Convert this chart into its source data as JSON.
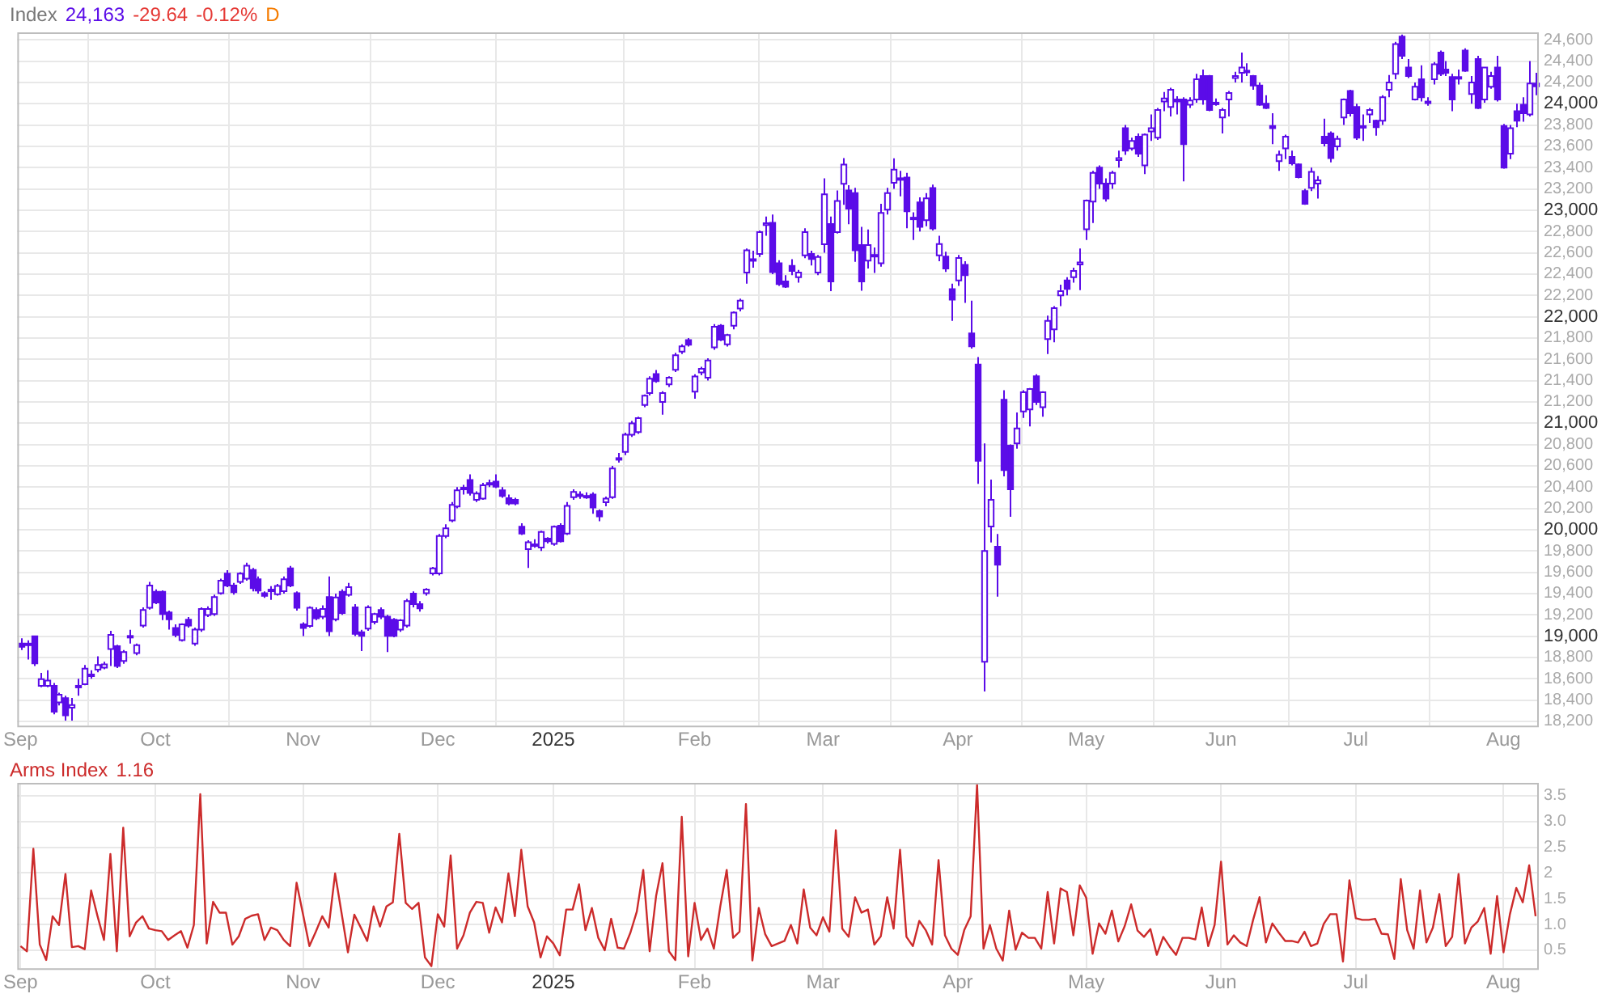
{
  "chart_data": [
    {
      "type": "candlestick",
      "title": "Index",
      "annotations": [
        "24,163",
        "-29.64",
        "-0.12%",
        "D"
      ],
      "color": "#5b0ce8",
      "grid": true,
      "categories": [
        "Sep",
        null,
        null,
        null,
        null,
        null,
        null,
        null,
        null,
        null,
        null,
        null,
        null,
        null,
        null,
        null,
        null,
        null,
        null,
        null,
        null,
        "Oct",
        null,
        null,
        null,
        null,
        null,
        null,
        null,
        null,
        null,
        null,
        null,
        null,
        null,
        null,
        null,
        null,
        null,
        null,
        null,
        null,
        null,
        null,
        "Nov",
        null,
        null,
        null,
        null,
        null,
        null,
        null,
        null,
        null,
        null,
        null,
        null,
        null,
        null,
        null,
        null,
        null,
        null,
        null,
        null,
        "Dec",
        null,
        null,
        null,
        null,
        null,
        null,
        null,
        null,
        null,
        null,
        null,
        null,
        null,
        null,
        null,
        null,
        null,
        "2025",
        null,
        null,
        null,
        null,
        null,
        null,
        null,
        null,
        null,
        null,
        null,
        null,
        null,
        null,
        null,
        null,
        null,
        null,
        null,
        null,
        null,
        "Feb",
        null,
        null,
        null,
        null,
        null,
        null,
        null,
        null,
        null,
        null,
        null,
        null,
        null,
        null,
        null,
        null,
        null,
        null,
        null,
        "Mar",
        null,
        null,
        null,
        null,
        null,
        null,
        null,
        null,
        null,
        null,
        null,
        null,
        null,
        null,
        null,
        null,
        null,
        null,
        null,
        null,
        "Apr",
        null,
        null,
        null,
        null,
        null,
        null,
        null,
        null,
        null,
        null,
        null,
        null,
        null,
        null,
        null,
        null,
        null,
        null,
        null,
        "May",
        null,
        null,
        null,
        null,
        null,
        null,
        null,
        null,
        null,
        null,
        null,
        null,
        null,
        null,
        null,
        null,
        null,
        null,
        null,
        null,
        "Jun",
        null,
        null,
        null,
        null,
        null,
        null,
        null,
        null,
        null,
        null,
        null,
        null,
        null,
        null,
        null,
        null,
        null,
        null,
        null,
        null,
        "Jul",
        null,
        null,
        null,
        null,
        null,
        null,
        null,
        null,
        null,
        null,
        null,
        null,
        null,
        null,
        null,
        null,
        null,
        null,
        null,
        null,
        null,
        null,
        "Aug",
        null,
        null,
        null,
        null,
        null
      ],
      "ylim": [
        18160,
        24670
      ],
      "yticks": [
        {
          "value": 18200,
          "label": "18,200"
        },
        {
          "value": 18400,
          "label": "18,400"
        },
        {
          "value": 18600,
          "label": "18,600"
        },
        {
          "value": 18800,
          "label": "18,800"
        },
        {
          "value": 19000,
          "label": "19,000"
        },
        {
          "value": 19200,
          "label": "19,200"
        },
        {
          "value": 19400,
          "label": "19,400"
        },
        {
          "value": 19600,
          "label": "19,600"
        },
        {
          "value": 19800,
          "label": "19,800"
        },
        {
          "value": 20000,
          "label": "20,000"
        },
        {
          "value": 20200,
          "label": "20,200"
        },
        {
          "value": 20400,
          "label": "20,400"
        },
        {
          "value": 20600,
          "label": "20,600"
        },
        {
          "value": 20800,
          "label": "20,800"
        },
        {
          "value": 21000,
          "label": "21,000"
        },
        {
          "value": 21200,
          "label": "21,200"
        },
        {
          "value": 21400,
          "label": "21,400"
        },
        {
          "value": 21600,
          "label": "21,600"
        },
        {
          "value": 21800,
          "label": "21,800"
        },
        {
          "value": 22000,
          "label": "22,000"
        },
        {
          "value": 22200,
          "label": "22,200"
        },
        {
          "value": 22400,
          "label": "22,400"
        },
        {
          "value": 22600,
          "label": "22,600"
        },
        {
          "value": 22800,
          "label": "22,800"
        },
        {
          "value": 23000,
          "label": "23,000"
        },
        {
          "value": 23200,
          "label": "23,200"
        },
        {
          "value": 23400,
          "label": "23,400"
        },
        {
          "value": 23600,
          "label": "23,600"
        },
        {
          "value": 23800,
          "label": "23,800"
        },
        {
          "value": 24000,
          "label": "24,000"
        },
        {
          "value": 24200,
          "label": "24,200"
        },
        {
          "value": 24400,
          "label": "24,400"
        },
        {
          "value": 24600,
          "label": "24,600"
        }
      ],
      "ohlc": [
        [
          18930,
          18980,
          18870,
          18900
        ],
        [
          18930,
          18960,
          18780,
          18925
        ],
        [
          18998,
          19000,
          18720,
          18744
        ],
        [
          18534,
          18656,
          18520,
          18597
        ],
        [
          18534,
          18680,
          18520,
          18583
        ],
        [
          18534,
          18560,
          18266,
          18290
        ],
        [
          18378,
          18470,
          18350,
          18451
        ],
        [
          18417,
          18440,
          18207,
          18256
        ],
        [
          18329,
          18420,
          18207,
          18354
        ],
        [
          18530,
          18600,
          18440,
          18534
        ],
        [
          18549,
          18730,
          18540,
          18695
        ],
        [
          18640,
          18680,
          18600,
          18632
        ],
        [
          18685,
          18810,
          18660,
          18729
        ],
        [
          18705,
          18760,
          18690,
          18734
        ],
        [
          18880,
          19051,
          18720,
          19012
        ],
        [
          18905,
          18920,
          18700,
          18720
        ],
        [
          18768,
          18870,
          18740,
          18851
        ],
        [
          18990,
          19060,
          18930,
          19002
        ],
        [
          18842,
          18930,
          18820,
          18915
        ],
        [
          19100,
          19270,
          19080,
          19246
        ],
        [
          19266,
          19510,
          19250,
          19476
        ],
        [
          19417,
          19440,
          19300,
          19315
        ],
        [
          19417,
          19430,
          19150,
          19207
        ],
        [
          19222,
          19240,
          19061,
          19159
        ],
        [
          19076,
          19110,
          18990,
          19012
        ],
        [
          18963,
          19120,
          18950,
          19110
        ],
        [
          19154,
          19180,
          19080,
          19100
        ],
        [
          18930,
          19080,
          18910,
          19061
        ],
        [
          19061,
          19270,
          19040,
          19256
        ],
        [
          19198,
          19280,
          19180,
          19256
        ],
        [
          19207,
          19390,
          19190,
          19368
        ],
        [
          19403,
          19540,
          19390,
          19520
        ],
        [
          19588,
          19620,
          19460,
          19476
        ],
        [
          19476,
          19500,
          19390,
          19412
        ],
        [
          19510,
          19600,
          19490,
          19588
        ],
        [
          19539,
          19690,
          19520,
          19661
        ],
        [
          19622,
          19640,
          19420,
          19451
        ],
        [
          19534,
          19560,
          19400,
          19427
        ],
        [
          19403,
          19420,
          19360,
          19378
        ],
        [
          19437,
          19470,
          19340,
          19437
        ],
        [
          19393,
          19490,
          19380,
          19471
        ],
        [
          19422,
          19560,
          19400,
          19534
        ],
        [
          19637,
          19660,
          19460,
          19476
        ],
        [
          19403,
          19420,
          19240,
          19266
        ],
        [
          19110,
          19130,
          19000,
          19076
        ],
        [
          19095,
          19280,
          19080,
          19266
        ],
        [
          19246,
          19270,
          19150,
          19168
        ],
        [
          19183,
          19290,
          19160,
          19256
        ],
        [
          19368,
          19560,
          19000,
          19046
        ],
        [
          19158,
          19400,
          19140,
          19364
        ],
        [
          19417,
          19440,
          19200,
          19217
        ],
        [
          19388,
          19500,
          19370,
          19461
        ],
        [
          19271,
          19300,
          19000,
          19022
        ],
        [
          19036,
          19060,
          18860,
          19002
        ],
        [
          19071,
          19290,
          19050,
          19271
        ],
        [
          19134,
          19220,
          19110,
          19207
        ],
        [
          19246,
          19270,
          19160,
          19183
        ],
        [
          19183,
          19200,
          18850,
          19002
        ],
        [
          19154,
          19170,
          18990,
          19002
        ],
        [
          19061,
          19160,
          19040,
          19149
        ],
        [
          19100,
          19350,
          19080,
          19329
        ],
        [
          19400,
          19420,
          19270,
          19300
        ],
        [
          19300,
          19330,
          19230,
          19260
        ],
        [
          19403,
          19450,
          19380,
          19437
        ],
        [
          19589,
          19650,
          19570,
          19637
        ],
        [
          19589,
          19960,
          19570,
          19940
        ],
        [
          19940,
          20050,
          19920,
          20013
        ],
        [
          20086,
          20260,
          20070,
          20233
        ],
        [
          20218,
          20400,
          20200,
          20369
        ],
        [
          20380,
          20420,
          20330,
          20394
        ],
        [
          20467,
          20520,
          20320,
          20345
        ],
        [
          20281,
          20360,
          20260,
          20340
        ],
        [
          20291,
          20440,
          20280,
          20418
        ],
        [
          20430,
          20470,
          20400,
          20438
        ],
        [
          20452,
          20520,
          20390,
          20403
        ],
        [
          20369,
          20400,
          20300,
          20316
        ],
        [
          20296,
          20330,
          20230,
          20247
        ],
        [
          20281,
          20300,
          20230,
          20247
        ],
        [
          20028,
          20060,
          19950,
          19964
        ],
        [
          19818,
          19900,
          19640,
          19881
        ],
        [
          19860,
          19910,
          19830,
          19862
        ],
        [
          19832,
          19990,
          19800,
          19979
        ],
        [
          19915,
          19930,
          19870,
          19891
        ],
        [
          19867,
          20040,
          19850,
          20028
        ],
        [
          20038,
          20060,
          19880,
          19891
        ],
        [
          19964,
          20260,
          19950,
          20223
        ],
        [
          20306,
          20380,
          20280,
          20355
        ],
        [
          20320,
          20360,
          20290,
          20330
        ],
        [
          20310,
          20350,
          20290,
          20317
        ],
        [
          20330,
          20350,
          20150,
          20208
        ],
        [
          20174,
          20190,
          20080,
          20125
        ],
        [
          20257,
          20310,
          20220,
          20291
        ],
        [
          20306,
          20600,
          20290,
          20574
        ],
        [
          20660,
          20720,
          20630,
          20672
        ],
        [
          20730,
          20910,
          20700,
          20891
        ],
        [
          20891,
          21020,
          20870,
          20999
        ],
        [
          20916,
          21060,
          20900,
          21048
        ],
        [
          21170,
          21270,
          21150,
          21258
        ],
        [
          21282,
          21440,
          21260,
          21418
        ],
        [
          21462,
          21500,
          21380,
          21394
        ],
        [
          21199,
          21300,
          21080,
          21282
        ],
        [
          21365,
          21440,
          21340,
          21428
        ],
        [
          21501,
          21660,
          21480,
          21638
        ],
        [
          21672,
          21740,
          21650,
          21721
        ],
        [
          21780,
          21800,
          21720,
          21736
        ],
        [
          21296,
          21460,
          21230,
          21438
        ],
        [
          21477,
          21530,
          21450,
          21511
        ],
        [
          21428,
          21610,
          21400,
          21589
        ],
        [
          21711,
          21930,
          21690,
          21906
        ],
        [
          21916,
          21930,
          21770,
          21784
        ],
        [
          21740,
          21840,
          21720,
          21828
        ],
        [
          21916,
          22050,
          21880,
          22038
        ],
        [
          22077,
          22170,
          22050,
          22151
        ],
        [
          22414,
          22640,
          22310,
          22624
        ],
        [
          22540,
          22620,
          22460,
          22526
        ],
        [
          22590,
          22810,
          22560,
          22795
        ],
        [
          22860,
          22940,
          22760,
          22878
        ],
        [
          22882,
          22960,
          22400,
          22419
        ],
        [
          22502,
          22530,
          22290,
          22307
        ],
        [
          22331,
          22390,
          22270,
          22282
        ],
        [
          22477,
          22540,
          22390,
          22429
        ],
        [
          22370,
          22440,
          22320,
          22414
        ],
        [
          22575,
          22830,
          22550,
          22795
        ],
        [
          22590,
          22620,
          22480,
          22541
        ],
        [
          22414,
          22580,
          22390,
          22560
        ],
        [
          22680,
          23300,
          22600,
          23150
        ],
        [
          22870,
          22940,
          22240,
          22330
        ],
        [
          22795,
          23185,
          22780,
          23087
        ],
        [
          23248,
          23490,
          23050,
          23429
        ],
        [
          23185,
          23234,
          22868,
          23014
        ],
        [
          23160,
          23210,
          22516,
          22624
        ],
        [
          22673,
          22843,
          22243,
          22331
        ],
        [
          22526,
          22819,
          22453,
          22673
        ],
        [
          22580,
          22650,
          22410,
          22575
        ],
        [
          22502,
          23060,
          22470,
          22975
        ],
        [
          23004,
          23210,
          22960,
          23160
        ],
        [
          23258,
          23487,
          23200,
          23380
        ],
        [
          23300,
          23370,
          23130,
          23292
        ],
        [
          23307,
          23350,
          22830,
          22990
        ],
        [
          22930,
          22980,
          22720,
          22917
        ],
        [
          23073,
          23120,
          22800,
          22843
        ],
        [
          22907,
          23160,
          22850,
          23112
        ],
        [
          23209,
          23240,
          22810,
          22829
        ],
        [
          22575,
          22760,
          22520,
          22683
        ],
        [
          22565,
          22610,
          22420,
          22453
        ],
        [
          22258,
          22310,
          21960,
          22160
        ],
        [
          22341,
          22580,
          22290,
          22551
        ],
        [
          22487,
          22520,
          22130,
          22390
        ],
        [
          21843,
          22150,
          21700,
          21721
        ],
        [
          21550,
          21620,
          20430,
          20647
        ],
        [
          18760,
          20810,
          18480,
          19800
        ],
        [
          20030,
          20470,
          19880,
          20280
        ],
        [
          19840,
          19960,
          19370,
          19670
        ],
        [
          21220,
          21310,
          20500,
          20560
        ],
        [
          20790,
          20800,
          20120,
          20380
        ],
        [
          20810,
          21100,
          20760,
          20950
        ],
        [
          21110,
          21310,
          21050,
          21290
        ],
        [
          21130,
          21330,
          20970,
          21320
        ],
        [
          21440,
          21460,
          21170,
          21200
        ],
        [
          21150,
          21300,
          21060,
          21290
        ],
        [
          21790,
          22010,
          21650,
          21960
        ],
        [
          21880,
          22100,
          21760,
          22080
        ],
        [
          22200,
          22300,
          22100,
          22240
        ],
        [
          22340,
          22370,
          22200,
          22260
        ],
        [
          22370,
          22460,
          22320,
          22430
        ],
        [
          22490,
          22640,
          22250,
          22510
        ],
        [
          22820,
          23100,
          22720,
          23090
        ],
        [
          23080,
          23370,
          22880,
          23350
        ],
        [
          23400,
          23420,
          23200,
          23250
        ],
        [
          23250,
          23300,
          23080,
          23110
        ],
        [
          23250,
          23370,
          23200,
          23350
        ],
        [
          23470,
          23560,
          23400,
          23490
        ],
        [
          23770,
          23800,
          23520,
          23560
        ],
        [
          23580,
          23680,
          23560,
          23650
        ],
        [
          23690,
          23720,
          23500,
          23530
        ],
        [
          23420,
          23720,
          23340,
          23710
        ],
        [
          23740,
          23900,
          23650,
          23770
        ],
        [
          23680,
          23960,
          23660,
          23940
        ],
        [
          24020,
          24110,
          23930,
          24050
        ],
        [
          23970,
          24150,
          23880,
          24130
        ],
        [
          24040,
          24070,
          23900,
          24020
        ],
        [
          24040,
          24060,
          23270,
          23620
        ],
        [
          23990,
          24060,
          23960,
          24030
        ],
        [
          24040,
          24280,
          24010,
          24230
        ],
        [
          24260,
          24320,
          23990,
          24040
        ],
        [
          24260,
          24270,
          23930,
          23940
        ],
        [
          24010,
          24050,
          23980,
          24000
        ],
        [
          23870,
          23960,
          23720,
          23940
        ],
        [
          24040,
          24120,
          23880,
          24100
        ],
        [
          24240,
          24300,
          24200,
          24260
        ],
        [
          24290,
          24480,
          24200,
          24340
        ],
        [
          24300,
          24380,
          24260,
          24310
        ],
        [
          24260,
          24270,
          24130,
          24170
        ],
        [
          24170,
          24200,
          23980,
          23990
        ],
        [
          24000,
          24080,
          23950,
          23960
        ],
        [
          23790,
          23910,
          23620,
          23770
        ],
        [
          23460,
          23560,
          23370,
          23520
        ],
        [
          23580,
          23710,
          23480,
          23690
        ],
        [
          23500,
          23560,
          23420,
          23440
        ],
        [
          23430,
          23440,
          23300,
          23310
        ],
        [
          23180,
          23200,
          23050,
          23060
        ],
        [
          23210,
          23400,
          23180,
          23360
        ],
        [
          23250,
          23320,
          23110,
          23280
        ],
        [
          23690,
          23860,
          23600,
          23630
        ],
        [
          23720,
          23740,
          23450,
          23490
        ],
        [
          23600,
          23700,
          23560,
          23670
        ],
        [
          23870,
          24050,
          23800,
          24040
        ],
        [
          24120,
          24130,
          23880,
          23910
        ],
        [
          23970,
          24000,
          23660,
          23680
        ],
        [
          23780,
          23900,
          23650,
          23790
        ],
        [
          23900,
          23960,
          23820,
          23940
        ],
        [
          23840,
          23850,
          23700,
          23780
        ],
        [
          23840,
          24080,
          23800,
          24060
        ],
        [
          24130,
          24270,
          24060,
          24200
        ],
        [
          24280,
          24580,
          24230,
          24560
        ],
        [
          24630,
          24650,
          24420,
          24450
        ],
        [
          24340,
          24420,
          24240,
          24260
        ],
        [
          24040,
          24200,
          24030,
          24160
        ],
        [
          24230,
          24360,
          24020,
          24060
        ],
        [
          24020,
          24060,
          23980,
          24010
        ],
        [
          24230,
          24390,
          24180,
          24370
        ],
        [
          24480,
          24500,
          24260,
          24280
        ],
        [
          24320,
          24400,
          24260,
          24290
        ],
        [
          24250,
          24280,
          23930,
          24040
        ],
        [
          24240,
          24320,
          24180,
          24250
        ],
        [
          24500,
          24520,
          24300,
          24310
        ],
        [
          24090,
          24260,
          24000,
          24200
        ],
        [
          24420,
          24450,
          23950,
          23960
        ],
        [
          24040,
          24340,
          24010,
          24340
        ],
        [
          24160,
          24300,
          24140,
          24260
        ],
        [
          24340,
          24450,
          24020,
          24040
        ],
        [
          23790,
          23810,
          23390,
          23400
        ],
        [
          23530,
          23800,
          23480,
          23770
        ],
        [
          23930,
          24000,
          23780,
          23840
        ],
        [
          23990,
          24060,
          23830,
          23910
        ],
        [
          23900,
          24400,
          23880,
          24190
        ],
        [
          24190,
          24290,
          24080,
          24163
        ]
      ]
    },
    {
      "type": "line",
      "title": "Arms Index",
      "annotations": [
        "1.16"
      ],
      "color": "#cc2b2b",
      "grid": true,
      "marker": "none",
      "categories": [
        "Sep",
        null,
        null,
        null,
        null,
        null,
        null,
        null,
        null,
        null,
        null,
        null,
        null,
        null,
        null,
        null,
        null,
        null,
        null,
        null,
        null,
        "Oct",
        null,
        null,
        null,
        null,
        null,
        null,
        null,
        null,
        null,
        null,
        null,
        null,
        null,
        null,
        null,
        null,
        null,
        null,
        null,
        null,
        null,
        null,
        "Nov",
        null,
        null,
        null,
        null,
        null,
        null,
        null,
        null,
        null,
        null,
        null,
        null,
        null,
        null,
        null,
        null,
        null,
        null,
        null,
        null,
        "Dec",
        null,
        null,
        null,
        null,
        null,
        null,
        null,
        null,
        null,
        null,
        null,
        null,
        null,
        null,
        null,
        null,
        null,
        "2025",
        null,
        null,
        null,
        null,
        null,
        null,
        null,
        null,
        null,
        null,
        null,
        null,
        null,
        null,
        null,
        null,
        null,
        null,
        null,
        null,
        null,
        "Feb",
        null,
        null,
        null,
        null,
        null,
        null,
        null,
        null,
        null,
        null,
        null,
        null,
        null,
        null,
        null,
        null,
        null,
        null,
        null,
        "Mar",
        null,
        null,
        null,
        null,
        null,
        null,
        null,
        null,
        null,
        null,
        null,
        null,
        null,
        null,
        null,
        null,
        null,
        null,
        null,
        null,
        "Apr",
        null,
        null,
        null,
        null,
        null,
        null,
        null,
        null,
        null,
        null,
        null,
        null,
        null,
        null,
        null,
        null,
        null,
        null,
        null,
        "May",
        null,
        null,
        null,
        null,
        null,
        null,
        null,
        null,
        null,
        null,
        null,
        null,
        null,
        null,
        null,
        null,
        null,
        null,
        null,
        null,
        "Jun",
        null,
        null,
        null,
        null,
        null,
        null,
        null,
        null,
        null,
        null,
        null,
        null,
        null,
        null,
        null,
        null,
        null,
        null,
        null,
        null,
        "Jul",
        null,
        null,
        null,
        null,
        null,
        null,
        null,
        null,
        null,
        null,
        null,
        null,
        null,
        null,
        null,
        null,
        null,
        null,
        null,
        null,
        null,
        null,
        "Aug",
        null,
        null,
        null,
        null,
        null
      ],
      "ylim": [
        0.15,
        3.75
      ],
      "yticks": [
        0.5,
        {
          "value": 1,
          "label": "1.0"
        },
        1.5,
        2,
        2.5,
        {
          "value": 3,
          "label": "3.0"
        },
        3.5
      ],
      "values": [
        0.58,
        0.48,
        2.47,
        0.61,
        0.31,
        1.16,
        0.99,
        1.98,
        0.56,
        0.58,
        0.52,
        1.66,
        1.16,
        0.7,
        2.37,
        0.48,
        2.88,
        0.77,
        1.04,
        1.16,
        0.92,
        0.89,
        0.87,
        0.7,
        0.79,
        0.87,
        0.55,
        0.99,
        3.53,
        0.63,
        1.44,
        1.23,
        1.23,
        0.61,
        0.77,
        1.11,
        1.17,
        1.2,
        0.7,
        0.94,
        0.89,
        0.7,
        0.58,
        1.81,
        1.2,
        0.58,
        0.86,
        1.16,
        0.94,
        1.99,
        1.23,
        0.46,
        1.19,
        0.94,
        0.68,
        1.35,
        0.96,
        1.35,
        1.43,
        2.76,
        1.42,
        1.3,
        1.42,
        0.36,
        0.19,
        1.2,
        0.96,
        2.34,
        0.53,
        0.79,
        1.23,
        1.44,
        1.42,
        0.84,
        1.33,
        1.04,
        1.99,
        1.16,
        2.45,
        1.35,
        1.04,
        0.36,
        0.77,
        0.63,
        0.4,
        1.29,
        1.29,
        1.78,
        0.89,
        1.32,
        0.74,
        0.5,
        1.11,
        0.55,
        0.53,
        0.84,
        1.25,
        2.06,
        0.48,
        1.55,
        2.19,
        0.48,
        0.31,
        3.09,
        0.38,
        1.42,
        0.7,
        0.92,
        0.53,
        1.35,
        2.06,
        0.74,
        0.86,
        3.34,
        0.3,
        1.32,
        0.81,
        0.58,
        0.63,
        0.68,
        0.99,
        0.63,
        1.68,
        0.94,
        0.79,
        1.14,
        0.86,
        2.83,
        0.92,
        0.76,
        1.53,
        1.23,
        1.29,
        0.61,
        0.77,
        1.53,
        0.92,
        2.45,
        0.76,
        0.58,
        1.07,
        0.89,
        0.61,
        2.25,
        0.79,
        0.53,
        0.41,
        0.89,
        1.16,
        3.72,
        0.53,
        0.99,
        0.53,
        0.3,
        1.27,
        0.51,
        0.84,
        0.74,
        0.74,
        0.53,
        1.63,
        0.63,
        1.7,
        1.63,
        0.79,
        1.76,
        1.52,
        0.43,
        1.02,
        0.82,
        1.27,
        0.67,
        0.97,
        1.39,
        0.88,
        0.76,
        0.91,
        0.41,
        0.76,
        0.57,
        0.41,
        0.74,
        0.74,
        0.71,
        1.33,
        0.58,
        0.99,
        2.22,
        0.61,
        0.79,
        0.65,
        0.58,
        1.09,
        1.53,
        0.65,
        1.02,
        0.84,
        0.68,
        0.68,
        0.65,
        0.86,
        0.58,
        0.63,
        1.01,
        1.2,
        1.2,
        0.28,
        1.86,
        1.12,
        1.09,
        1.09,
        1.11,
        0.82,
        0.81,
        0.33,
        1.88,
        0.89,
        0.53,
        1.66,
        0.65,
        0.94,
        1.59,
        0.58,
        0.76,
        1.98,
        0.63,
        0.94,
        1.06,
        1.32,
        0.43,
        1.55,
        0.46,
        1.2,
        1.71,
        1.43,
        2.15,
        1.16
      ]
    }
  ]
}
